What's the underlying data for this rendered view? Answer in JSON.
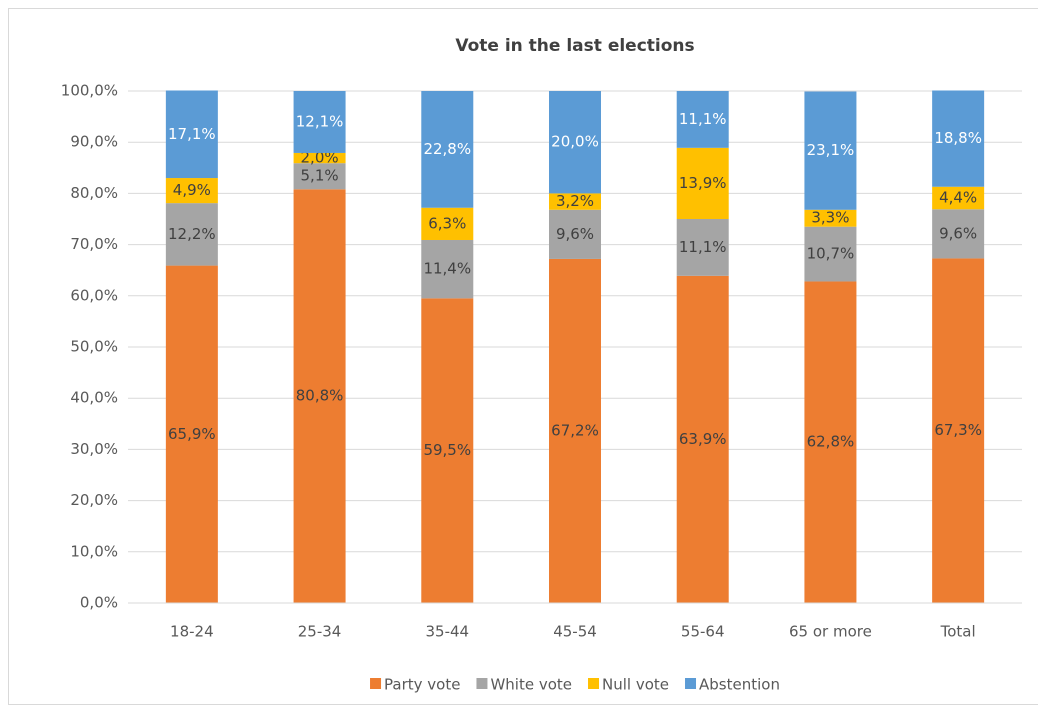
{
  "chart_data": {
    "type": "bar",
    "stacked": true,
    "title": "Vote in the last elections",
    "categories": [
      "18-24",
      "25-34",
      "35-44",
      "45-54",
      "55-64",
      "65 or more",
      "Total"
    ],
    "series": [
      {
        "name": "Party vote",
        "color": "#ed7d31",
        "values": [
          65.9,
          80.8,
          59.5,
          67.2,
          63.9,
          62.8,
          67.3
        ],
        "value_labels": [
          "65,9%",
          "80,8%",
          "59,5%",
          "67,2%",
          "63,9%",
          "62,8%",
          "67,3%"
        ]
      },
      {
        "name": "White vote",
        "color": "#a5a5a5",
        "values": [
          12.2,
          5.1,
          11.4,
          9.6,
          11.1,
          10.7,
          9.6
        ],
        "value_labels": [
          "12,2%",
          "5,1%",
          "11,4%",
          "9,6%",
          "11,1%",
          "10,7%",
          "9,6%"
        ]
      },
      {
        "name": "Null vote",
        "color": "#ffc000",
        "values": [
          4.9,
          2.0,
          6.3,
          3.2,
          13.9,
          3.3,
          4.4
        ],
        "value_labels": [
          "4,9%",
          "2,0%",
          "6,3%",
          "3,2%",
          "13,9%",
          "3,3%",
          "4,4%"
        ]
      },
      {
        "name": "Abstention",
        "color": "#5b9bd5",
        "values": [
          17.1,
          12.1,
          22.8,
          20.0,
          11.1,
          23.1,
          18.8
        ],
        "value_labels": [
          "17,1%",
          "12,1%",
          "22,8%",
          "20,0%",
          "11,1%",
          "23,1%",
          "18,8%"
        ]
      }
    ],
    "ylim": [
      0,
      100
    ],
    "yticks": [
      {
        "value": 0,
        "label": "0,0%"
      },
      {
        "value": 10,
        "label": "10,0%"
      },
      {
        "value": 20,
        "label": "20,0%"
      },
      {
        "value": 30,
        "label": "30,0%"
      },
      {
        "value": 40,
        "label": "40,0%"
      },
      {
        "value": 50,
        "label": "50,0%"
      },
      {
        "value": 60,
        "label": "60,0%"
      },
      {
        "value": 70,
        "label": "70,0%"
      },
      {
        "value": 80,
        "label": "80,0%"
      },
      {
        "value": 90,
        "label": "90,0%"
      },
      {
        "value": 100,
        "label": "100,0%"
      }
    ],
    "grid": true,
    "legend": "bottom"
  }
}
